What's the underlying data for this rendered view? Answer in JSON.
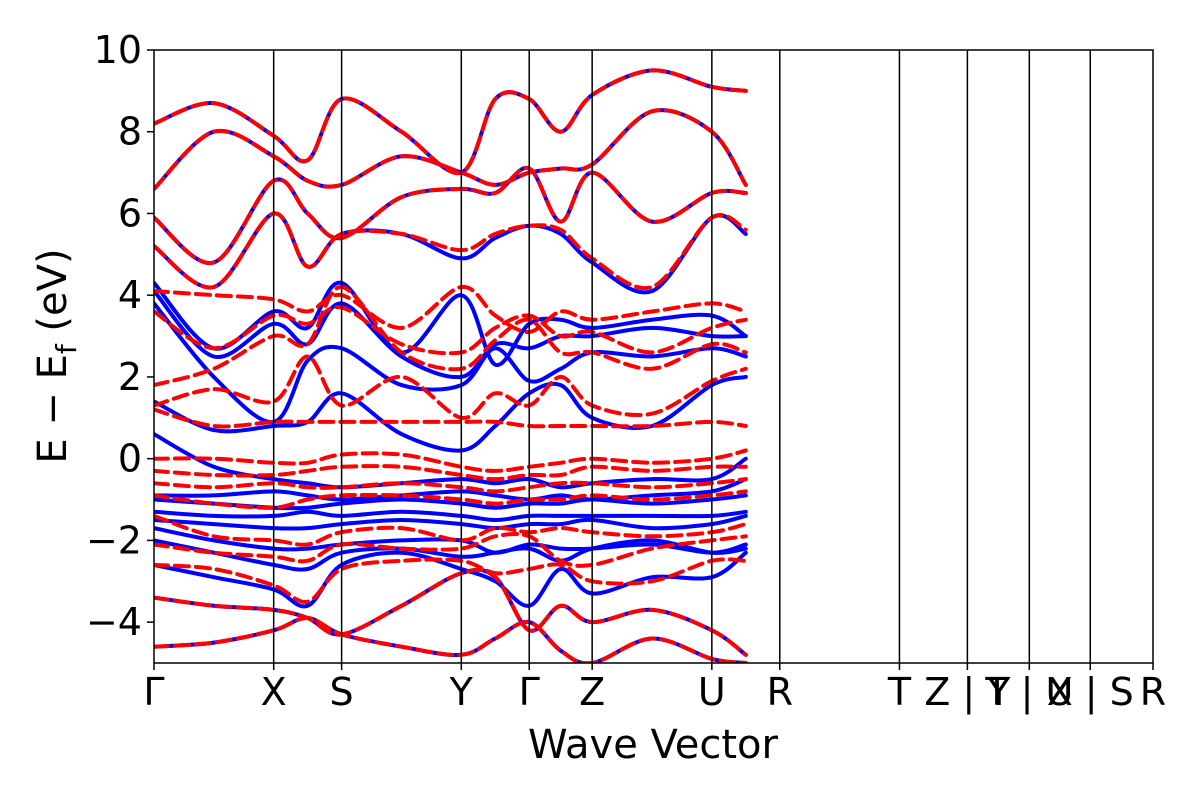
{
  "chart_data": {
    "type": "line",
    "xlabel": "Wave Vector",
    "ylabel": "E − E",
    "ylabel_subscript": "f",
    "ylabel_unit": " (eV)",
    "ylim": [
      -5,
      10
    ],
    "yticks": [
      -4,
      -2,
      0,
      2,
      4,
      6,
      8,
      10
    ],
    "ytick_labels": [
      "−4",
      "−2",
      "0",
      "2",
      "4",
      "6",
      "8",
      "10"
    ],
    "xlim": [
      0,
      1
    ],
    "kpoints": [
      {
        "label": "Γ",
        "pos": 0.0
      },
      {
        "label": "X",
        "pos": 0.1198
      },
      {
        "label": "S",
        "pos": 0.1878
      },
      {
        "label": "Y",
        "pos": 0.3076
      },
      {
        "label": "Γ",
        "pos": 0.3756
      },
      {
        "label": "Z",
        "pos": 0.4386
      },
      {
        "label": "U",
        "pos": 0.5584
      },
      {
        "label": "R",
        "pos": 0.6264
      },
      {
        "label": "T",
        "pos": 0.7462
      },
      {
        "label": "Z | Y",
        "pos": 0.8142
      },
      {
        "label": "T | U",
        "pos": 0.8762
      },
      {
        "label": "X | S",
        "pos": 0.9372
      },
      {
        "label": "R",
        "pos": 1.0
      }
    ],
    "grid": false,
    "series": [
      {
        "name": "",
        "color": "#0000ff",
        "dash": "solid",
        "bands": [
          [
            -4.6,
            -4.5,
            -4.2,
            -3.9,
            -4.3,
            -4.6,
            -4.8,
            -4.4,
            -4.0,
            -4.7,
            -5.0,
            -4.4,
            -4.9,
            -5.0
          ],
          [
            -3.4,
            -3.6,
            -3.7,
            -3.9,
            -4.3,
            -3.6,
            -2.8,
            -2.9,
            -4.2,
            -3.6,
            -4.0,
            -3.7,
            -4.2,
            -4.8
          ],
          [
            -2.6,
            -2.9,
            -3.2,
            -3.6,
            -2.6,
            -2.3,
            -2.7,
            -3.0,
            -3.6,
            -2.7,
            -3.3,
            -2.9,
            -2.9,
            -2.3
          ],
          [
            -2.0,
            -2.3,
            -2.6,
            -2.7,
            -2.3,
            -2.2,
            -2.4,
            -2.3,
            -2.2,
            -2.5,
            -2.2,
            -2.0,
            -2.3,
            -2.2
          ],
          [
            -1.7,
            -2.0,
            -2.2,
            -2.2,
            -2.1,
            -2.0,
            -2.0,
            -2.3,
            -2.1,
            -2.2,
            -2.2,
            -2.1,
            -2.3,
            -2.1
          ],
          [
            -1.5,
            -1.6,
            -1.7,
            -1.7,
            -1.6,
            -1.5,
            -1.6,
            -1.7,
            -1.6,
            -1.6,
            -1.5,
            -1.7,
            -1.6,
            -1.4
          ],
          [
            -1.3,
            -1.4,
            -1.4,
            -1.3,
            -1.4,
            -1.3,
            -1.4,
            -1.5,
            -1.4,
            -1.4,
            -1.4,
            -1.4,
            -1.4,
            -1.3
          ],
          [
            -1.0,
            -1.1,
            -1.2,
            -1.2,
            -1.1,
            -1.0,
            -1.1,
            -1.2,
            -1.1,
            -1.1,
            -1.0,
            -1.1,
            -1.0,
            -0.9
          ],
          [
            -0.9,
            -0.9,
            -0.8,
            -0.9,
            -1.0,
            -0.9,
            -0.8,
            -0.9,
            -1.0,
            -0.9,
            -1.0,
            -0.9,
            -0.8,
            -0.5
          ],
          [
            0.6,
            -0.2,
            -0.5,
            -0.6,
            -0.7,
            -0.6,
            -0.5,
            -0.6,
            -0.5,
            -0.7,
            -0.6,
            -0.5,
            -0.5,
            0.0
          ],
          [
            1.4,
            0.7,
            0.8,
            0.9,
            1.6,
            0.6,
            0.2,
            0.8,
            1.6,
            1.8,
            1.0,
            0.8,
            1.8,
            2.0
          ],
          [
            3.8,
            2.0,
            0.9,
            2.4,
            2.7,
            1.8,
            1.8,
            2.7,
            1.9,
            2.2,
            2.6,
            2.5,
            2.7,
            2.5
          ],
          [
            4.1,
            2.5,
            3.3,
            2.8,
            3.8,
            2.5,
            2.0,
            2.8,
            2.7,
            3.0,
            3.0,
            3.2,
            3.0,
            3.0
          ],
          [
            4.3,
            2.7,
            3.6,
            3.2,
            4.3,
            2.6,
            4.0,
            2.3,
            3.3,
            3.4,
            3.2,
            3.4,
            3.5,
            3.0
          ],
          [
            5.2,
            4.2,
            6.0,
            4.7,
            5.5,
            5.5,
            4.9,
            5.4,
            5.7,
            5.5,
            4.8,
            4.1,
            5.9,
            5.5
          ],
          [
            5.9,
            4.8,
            6.8,
            6.0,
            5.4,
            6.4,
            6.6,
            6.5,
            7.1,
            5.8,
            7.0,
            5.8,
            6.5,
            6.5
          ],
          [
            6.6,
            8.0,
            7.4,
            6.8,
            6.7,
            7.4,
            7.0,
            6.7,
            7.0,
            7.1,
            7.2,
            8.5,
            8.0,
            6.7
          ],
          [
            8.2,
            8.7,
            7.9,
            7.3,
            8.8,
            8.0,
            7.0,
            8.8,
            8.8,
            8.0,
            8.9,
            9.5,
            9.1,
            9.0
          ]
        ]
      },
      {
        "name": "",
        "color": "#ff0000",
        "dash": "dashed",
        "bands": [
          [
            -4.6,
            -4.5,
            -4.2,
            -3.9,
            -4.3,
            -4.6,
            -4.8,
            -4.4,
            -4.0,
            -4.7,
            -5.0,
            -4.4,
            -4.9,
            -5.0
          ],
          [
            -3.4,
            -3.6,
            -3.7,
            -3.9,
            -4.3,
            -3.6,
            -2.8,
            -2.9,
            -4.2,
            -3.6,
            -4.0,
            -3.7,
            -4.2,
            -4.8
          ],
          [
            -2.6,
            -2.7,
            -3.1,
            -3.5,
            -2.7,
            -2.5,
            -2.5,
            -2.8,
            -2.7,
            -2.6,
            -3.0,
            -3.0,
            -2.5,
            -2.5
          ],
          [
            -2.1,
            -2.3,
            -2.4,
            -2.5,
            -2.1,
            -2.2,
            -2.2,
            -1.9,
            -1.9,
            -2.5,
            -2.6,
            -2.2,
            -2.0,
            -1.9
          ],
          [
            -1.4,
            -1.9,
            -2.0,
            -2.1,
            -1.8,
            -1.7,
            -2.0,
            -1.7,
            -1.8,
            -1.7,
            -1.8,
            -1.9,
            -1.8,
            -1.6
          ],
          [
            -0.9,
            -1.1,
            -1.2,
            -1.0,
            -0.9,
            -0.9,
            -1.0,
            -1.1,
            -1.0,
            -1.0,
            -0.9,
            -1.0,
            -0.9,
            -0.8
          ],
          [
            -0.6,
            -0.7,
            -0.6,
            -0.7,
            -0.7,
            -0.6,
            -0.7,
            -0.8,
            -0.7,
            -0.6,
            -0.6,
            -0.7,
            -0.6,
            -0.5
          ],
          [
            -0.3,
            -0.4,
            -0.4,
            -0.3,
            -0.2,
            -0.2,
            -0.4,
            -0.5,
            -0.4,
            -0.4,
            -0.2,
            -0.3,
            -0.2,
            -0.2
          ],
          [
            0.0,
            0.0,
            -0.1,
            -0.1,
            0.1,
            0.1,
            -0.2,
            -0.3,
            -0.2,
            -0.1,
            0.0,
            -0.1,
            0.0,
            0.2
          ],
          [
            1.2,
            0.8,
            0.9,
            0.9,
            0.9,
            0.9,
            0.9,
            0.9,
            0.8,
            0.8,
            0.8,
            0.8,
            0.9,
            0.8
          ],
          [
            1.3,
            1.7,
            1.4,
            2.5,
            1.3,
            2.0,
            1.0,
            1.6,
            1.3,
            2.0,
            1.3,
            1.1,
            1.9,
            2.2
          ],
          [
            1.8,
            2.2,
            3.0,
            2.8,
            4.2,
            2.6,
            2.2,
            2.9,
            3.4,
            2.6,
            2.6,
            2.2,
            2.8,
            2.6
          ],
          [
            3.6,
            2.7,
            3.5,
            3.3,
            3.7,
            2.8,
            2.6,
            3.2,
            3.5,
            3.0,
            3.1,
            2.6,
            3.2,
            3.4
          ],
          [
            4.1,
            4.0,
            3.9,
            3.6,
            4.0,
            3.2,
            4.2,
            3.5,
            3.1,
            3.6,
            3.4,
            3.6,
            3.8,
            3.6
          ],
          [
            5.2,
            4.2,
            6.0,
            4.7,
            5.5,
            5.5,
            5.1,
            5.5,
            5.7,
            5.6,
            4.9,
            4.2,
            5.9,
            5.6
          ],
          [
            5.9,
            4.8,
            6.8,
            6.0,
            5.4,
            6.4,
            6.6,
            6.5,
            7.1,
            5.8,
            7.0,
            5.8,
            6.5,
            6.5
          ],
          [
            6.6,
            8.0,
            7.4,
            6.8,
            6.7,
            7.4,
            7.0,
            6.7,
            7.0,
            7.1,
            7.2,
            8.5,
            8.0,
            6.7
          ],
          [
            8.2,
            8.7,
            7.9,
            7.3,
            8.8,
            8.0,
            7.0,
            8.8,
            8.8,
            8.0,
            8.9,
            9.5,
            9.1,
            9.0
          ]
        ]
      }
    ]
  }
}
